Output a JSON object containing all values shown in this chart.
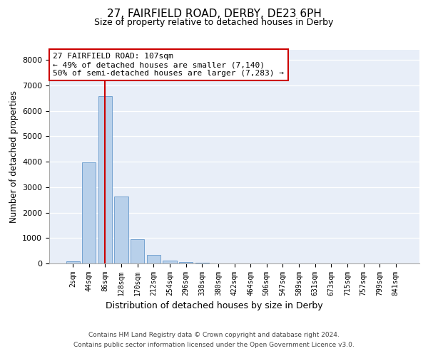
{
  "title_line1": "27, FAIRFIELD ROAD, DERBY, DE23 6PH",
  "title_line2": "Size of property relative to detached houses in Derby",
  "xlabel": "Distribution of detached houses by size in Derby",
  "ylabel": "Number of detached properties",
  "bar_labels": [
    "2sqm",
    "44sqm",
    "86sqm",
    "128sqm",
    "170sqm",
    "212sqm",
    "254sqm",
    "296sqm",
    "338sqm",
    "380sqm",
    "422sqm",
    "464sqm",
    "506sqm",
    "547sqm",
    "589sqm",
    "631sqm",
    "673sqm",
    "715sqm",
    "757sqm",
    "799sqm",
    "841sqm"
  ],
  "bar_values": [
    80,
    3980,
    6580,
    2620,
    940,
    330,
    110,
    60,
    20,
    0,
    0,
    0,
    0,
    0,
    0,
    0,
    0,
    0,
    0,
    0,
    0
  ],
  "bar_color": "#b8d0ea",
  "bar_edge_color": "#6699cc",
  "background_color": "#e8eef8",
  "grid_color": "#ffffff",
  "vline_x_index": 2,
  "vline_color": "#cc0000",
  "annotation_text": "27 FAIRFIELD ROAD: 107sqm\n← 49% of detached houses are smaller (7,140)\n50% of semi-detached houses are larger (7,283) →",
  "annotation_box_facecolor": "#ffffff",
  "annotation_box_edgecolor": "#cc0000",
  "ylim": [
    0,
    8400
  ],
  "yticks": [
    0,
    1000,
    2000,
    3000,
    4000,
    5000,
    6000,
    7000,
    8000
  ],
  "fig_facecolor": "#ffffff",
  "footer_line1": "Contains HM Land Registry data © Crown copyright and database right 2024.",
  "footer_line2": "Contains public sector information licensed under the Open Government Licence v3.0."
}
